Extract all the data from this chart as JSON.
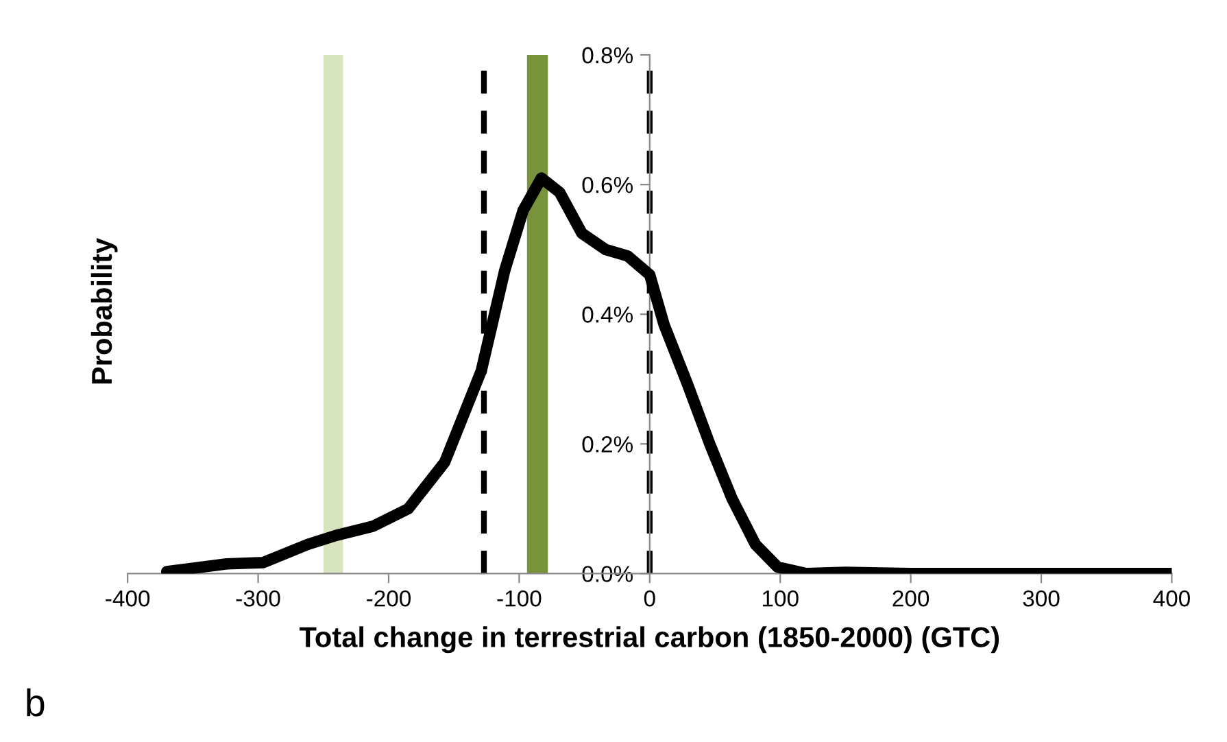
{
  "chart_data": {
    "type": "line",
    "xlabel": "Total change in terrestrial carbon (1850-2000) (GTC)",
    "ylabel": "Probability",
    "annotations": [
      "b"
    ],
    "x": [
      -370,
      -324,
      -296,
      -262,
      -240,
      -212,
      -185,
      -157,
      -129,
      -111,
      -97,
      -83,
      -69,
      -52,
      -34,
      -17,
      0,
      11,
      29,
      46,
      63,
      81,
      98,
      120,
      150,
      200,
      300,
      400
    ],
    "series": [
      {
        "color": "#000000",
        "values": [
          0.003,
          0.015,
          0.017,
          0.045,
          0.059,
          0.073,
          0.1,
          0.172,
          0.313,
          0.468,
          0.56,
          0.61,
          0.588,
          0.525,
          0.5,
          0.49,
          0.461,
          0.384,
          0.292,
          0.2,
          0.116,
          0.045,
          0.01,
          0.0,
          0.002,
          0.0,
          0.0,
          0.0
        ]
      }
    ],
    "xlim": [
      -400,
      400
    ],
    "xticks": [
      -400,
      -300,
      -200,
      -100,
      0,
      100,
      200,
      300,
      400
    ],
    "ylim": [
      0,
      0.8
    ],
    "yticks": [
      {
        "value": 0,
        "label": "0.0%"
      },
      {
        "value": 0.2,
        "label": "0.2%"
      },
      {
        "value": 0.4,
        "label": "0.4%"
      },
      {
        "value": 0.6,
        "label": "0.6%"
      },
      {
        "value": 0.8,
        "label": "0.8%"
      }
    ],
    "bands": [
      {
        "axis": "x",
        "from": -250,
        "to": -235,
        "color": "#d7e4bd"
      },
      {
        "axis": "x",
        "from": -94,
        "to": -78,
        "color": "#77933c"
      }
    ],
    "ref_lines": [
      {
        "axis": "x",
        "value": -127,
        "color": "#000000",
        "line_style": "dashed"
      },
      {
        "axis": "x",
        "value": 0,
        "color": "#000000",
        "line_style": "dashed"
      }
    ],
    "grid": false,
    "legend": false,
    "line_style": "solid",
    "marker": "none"
  }
}
